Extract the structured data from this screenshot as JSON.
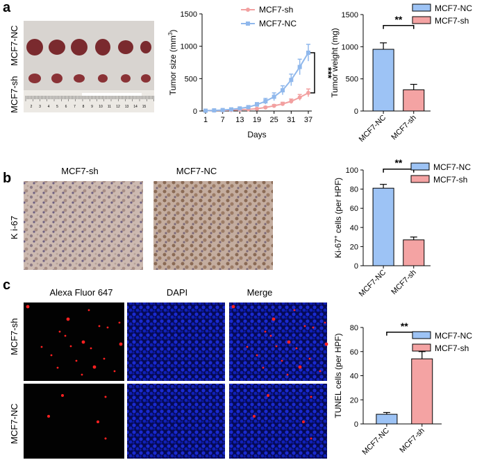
{
  "panels": {
    "a": "a",
    "b": "b",
    "c": "c"
  },
  "photo": {
    "row_labels": [
      "MCF7-sh",
      "MCF7-NC"
    ],
    "ruler_numbers": [
      "2",
      "3",
      "4",
      "5",
      "6",
      "7",
      "8",
      "9",
      "10",
      "11",
      "12",
      "13",
      "14",
      "15"
    ],
    "colors": {
      "tumor": "#7a2a2e",
      "background": "#d6d2ce"
    }
  },
  "ihc": {
    "titles": [
      "MCF7-sh",
      "MCF7-NC"
    ],
    "row_label": "K i-67",
    "colors": {
      "tissue": "#c9b6ad",
      "nuclei": "#6b5a78"
    }
  },
  "tunel": {
    "columns": [
      "Alexa Fluor 647",
      "DAPI",
      "Merge"
    ],
    "rows": [
      "MCF7-sh",
      "MCF7-NC"
    ],
    "colors": {
      "dapi": "#0a1aa0",
      "signal": "#ff2020"
    }
  },
  "colors": {
    "nc": "#9dc3f5",
    "sh": "#f4a3a3",
    "nc_line": "#90b8ec",
    "sh_line": "#f2a0a0"
  },
  "chart_data": [
    {
      "id": "tumor-size",
      "type": "line",
      "ylabel": "Tumor size (mm3)",
      "xlabel": "Days",
      "x": [
        1,
        4,
        7,
        10,
        13,
        16,
        19,
        22,
        25,
        28,
        31,
        34,
        37
      ],
      "xticks": [
        1,
        7,
        13,
        19,
        25,
        31,
        37
      ],
      "ylim": [
        0,
        1500
      ],
      "yticks": [
        0,
        500,
        1000,
        1500
      ],
      "legend": "top",
      "series": [
        {
          "name": "MCF7-sh",
          "values": [
            5,
            8,
            10,
            15,
            20,
            25,
            35,
            55,
            80,
            110,
            150,
            210,
            280
          ],
          "errors": [
            3,
            3,
            4,
            5,
            6,
            8,
            10,
            15,
            20,
            25,
            35,
            45,
            60
          ]
        },
        {
          "name": "MCF7-NC",
          "values": [
            5,
            10,
            15,
            25,
            40,
            60,
            100,
            150,
            220,
            320,
            480,
            680,
            900
          ],
          "errors": [
            3,
            4,
            6,
            8,
            12,
            18,
            30,
            45,
            60,
            70,
            90,
            120,
            130
          ]
        }
      ],
      "significance": "***"
    },
    {
      "id": "tumor-weight",
      "type": "bar",
      "ylabel": "Tumor weight (mg)",
      "categories": [
        "MCF7-NC",
        "MCF7-sh"
      ],
      "values": [
        960,
        330
      ],
      "errors": [
        100,
        85
      ],
      "ylim": [
        0,
        1500
      ],
      "yticks": [
        0,
        500,
        1000,
        1500
      ],
      "legend": [
        "MCF7-NC",
        "MCF7-sh"
      ],
      "significance": "**"
    },
    {
      "id": "ki67",
      "type": "bar",
      "ylabel": "Ki-67+ cells (per HPF)",
      "categories": [
        "MCF7-NC",
        "MCF7-sh"
      ],
      "values": [
        81,
        27
      ],
      "errors": [
        4,
        3
      ],
      "ylim": [
        0,
        100
      ],
      "yticks": [
        0,
        20,
        40,
        60,
        80,
        100
      ],
      "legend": [
        "MCF7-NC",
        "MCF7-sh"
      ],
      "significance": "**"
    },
    {
      "id": "tunel",
      "type": "bar",
      "ylabel": "TUNEL cells (per HPF)",
      "categories": [
        "MCF7-NC",
        "MCF7-sh"
      ],
      "values": [
        8,
        54
      ],
      "errors": [
        1.5,
        6
      ],
      "ylim": [
        0,
        80
      ],
      "yticks": [
        0,
        20,
        40,
        60,
        80
      ],
      "legend": [
        "MCF7-NC",
        "MCF7-sh"
      ],
      "significance": "**"
    }
  ]
}
